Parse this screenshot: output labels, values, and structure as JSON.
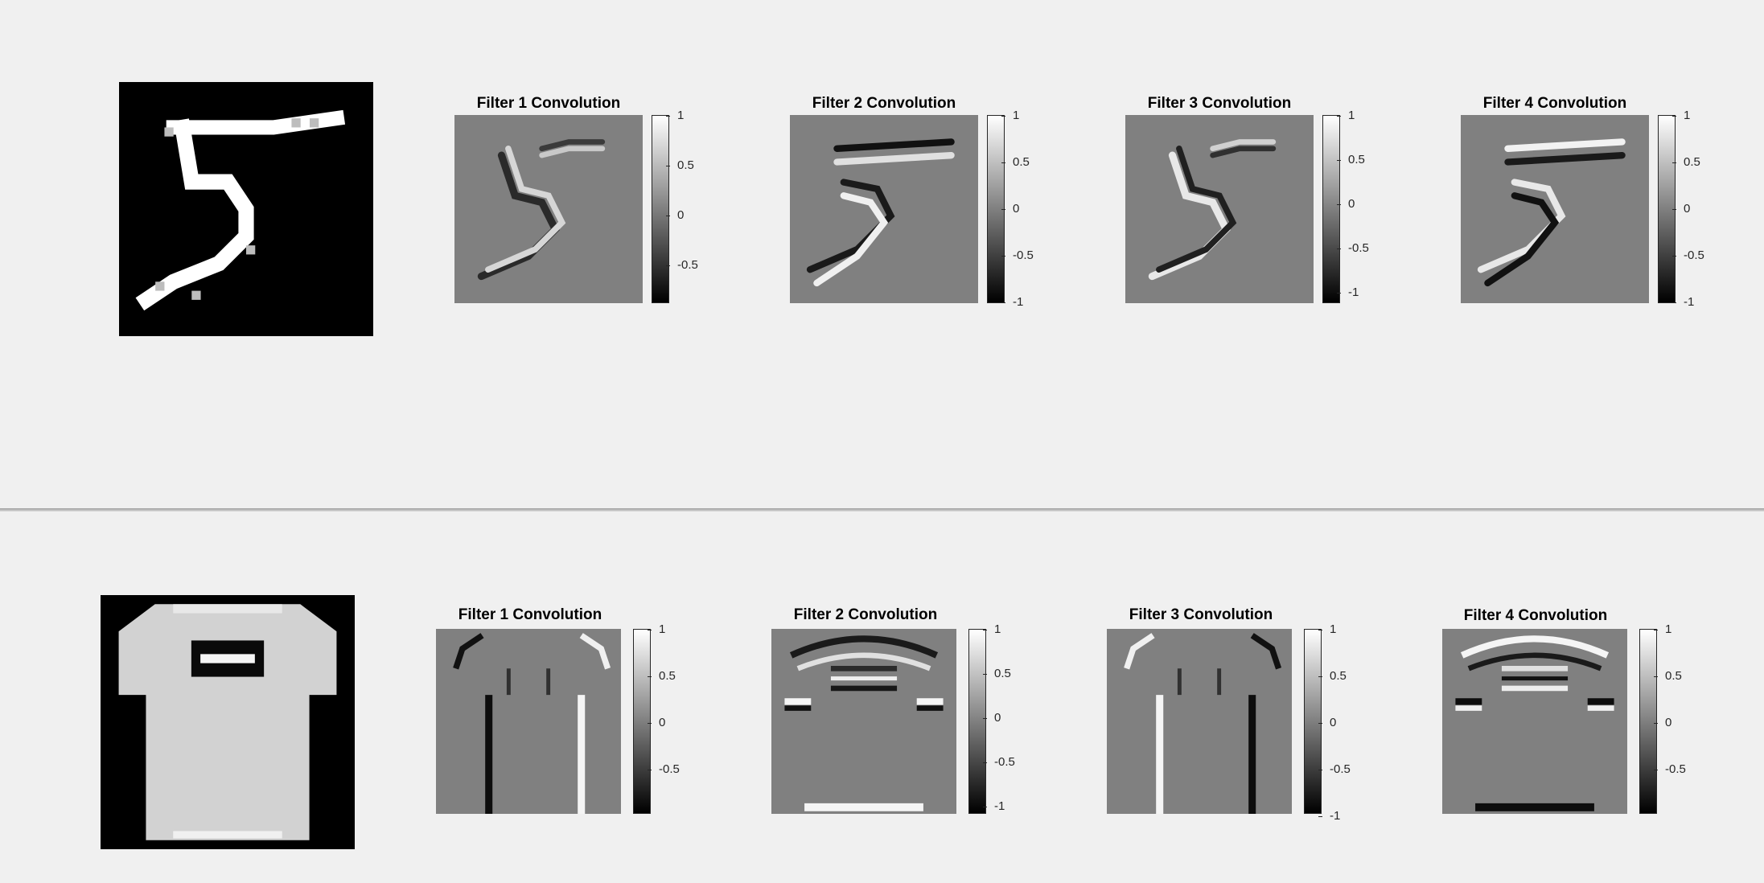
{
  "top_row": {
    "input_image": "digit-five",
    "panels": [
      {
        "title": "Filter 1 Convolution",
        "ticks": [
          "1",
          "0.5",
          "0",
          "-0.5"
        ],
        "pattern": "digit-edge-1"
      },
      {
        "title": "Filter 2 Convolution",
        "ticks": [
          "1",
          "0.5",
          "0",
          "-0.5",
          "-1"
        ],
        "pattern": "digit-edge-2"
      },
      {
        "title": "Filter 3 Convolution",
        "ticks": [
          "1",
          "0.5",
          "0",
          "-0.5",
          "-1"
        ],
        "pattern": "digit-edge-3"
      },
      {
        "title": "Filter 4 Convolution",
        "ticks": [
          "1",
          "0.5",
          "0",
          "-0.5",
          "-1"
        ],
        "pattern": "digit-edge-4"
      }
    ]
  },
  "bottom_row": {
    "input_image": "tshirt",
    "panels": [
      {
        "title": "Filter 1 Convolution",
        "ticks": [
          "1",
          "0.5",
          "0",
          "-0.5"
        ],
        "pattern": "shirt-vertical-edge"
      },
      {
        "title": "Filter 2 Convolution",
        "ticks": [
          "1",
          "0.5",
          "0",
          "-0.5",
          "-1"
        ],
        "pattern": "shirt-horizontal-edge"
      },
      {
        "title": "Filter 3 Convolution",
        "ticks": [
          "1",
          "0.5",
          "0",
          "-0.5",
          "-1"
        ],
        "pattern": "shirt-vertical-edge-inverted"
      },
      {
        "title": "Filter 4 Convolution",
        "ticks": [
          "1",
          "0.5",
          "0",
          "-0.5"
        ],
        "pattern": "shirt-horizontal-edge-inverted"
      }
    ]
  },
  "colormap": {
    "min_color": "#000000",
    "max_color": "#ffffff",
    "zero_color": "#808080"
  }
}
